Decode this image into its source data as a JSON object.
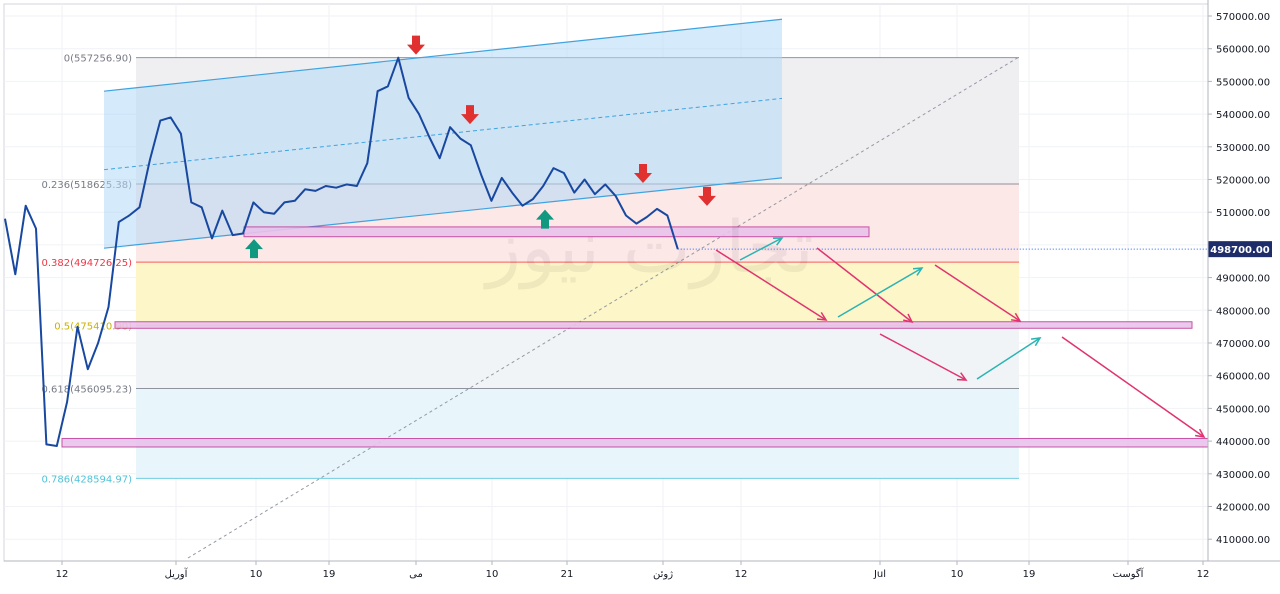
{
  "chart_data": {
    "type": "line",
    "y_axis": {
      "ticks": [
        "570000.00",
        "560000.00",
        "550000.00",
        "540000.00",
        "530000.00",
        "520000.00",
        "510000.00",
        "500000.00",
        "490000.00",
        "480000.00",
        "470000.00",
        "460000.00",
        "450000.00",
        "440000.00",
        "430000.00",
        "420000.00",
        "410000.00"
      ],
      "tick_values": [
        570000,
        560000,
        550000,
        540000,
        530000,
        520000,
        510000,
        500000,
        490000,
        480000,
        470000,
        460000,
        450000,
        440000,
        430000,
        420000,
        410000
      ],
      "range": [
        403000,
        574000
      ]
    },
    "x_axis": {
      "ticks": [
        "12",
        "آوریل",
        "10",
        "19",
        "می",
        "10",
        "21",
        "ژوئن",
        "12",
        "Jul",
        "10",
        "19",
        "آگوست",
        "12"
      ]
    },
    "price_label": "498700.00",
    "price_value": 498700,
    "series": [
      {
        "color": "#1848a0",
        "points": [
          [
            0,
            508000
          ],
          [
            1,
            491000
          ],
          [
            2,
            512000
          ],
          [
            3,
            505000
          ],
          [
            4,
            439000
          ],
          [
            5,
            438500
          ],
          [
            6,
            452000
          ],
          [
            7,
            475000
          ],
          [
            8,
            462000
          ],
          [
            9,
            470000
          ],
          [
            10,
            481000
          ],
          [
            11,
            507000
          ],
          [
            12,
            509000
          ],
          [
            13,
            511500
          ],
          [
            14,
            526000
          ],
          [
            15,
            538000
          ],
          [
            16,
            539000
          ],
          [
            17,
            534000
          ],
          [
            18,
            513000
          ],
          [
            19,
            511500
          ],
          [
            20,
            502000
          ],
          [
            21,
            510500
          ],
          [
            22,
            503000
          ],
          [
            23,
            503500
          ],
          [
            24,
            513000
          ],
          [
            25,
            510000
          ],
          [
            26,
            509500
          ],
          [
            27,
            513000
          ],
          [
            28,
            513500
          ],
          [
            29,
            517000
          ],
          [
            30,
            516500
          ],
          [
            31,
            518000
          ],
          [
            32,
            517500
          ],
          [
            33,
            518500
          ],
          [
            34,
            518000
          ],
          [
            35,
            525000
          ],
          [
            36,
            547000
          ],
          [
            37,
            548500
          ],
          [
            38,
            557256
          ],
          [
            39,
            545000
          ],
          [
            40,
            540000
          ],
          [
            41,
            533000
          ],
          [
            42,
            526500
          ],
          [
            43,
            536000
          ],
          [
            44,
            532500
          ],
          [
            45,
            530500
          ],
          [
            46,
            521500
          ],
          [
            47,
            513500
          ],
          [
            48,
            520500
          ],
          [
            49,
            516000
          ],
          [
            50,
            512000
          ],
          [
            51,
            514000
          ],
          [
            52,
            518000
          ],
          [
            53,
            523500
          ],
          [
            54,
            522000
          ],
          [
            55,
            516000
          ],
          [
            56,
            520000
          ],
          [
            57,
            515500
          ],
          [
            58,
            518500
          ],
          [
            59,
            515000
          ],
          [
            60,
            509000
          ],
          [
            61,
            506500
          ],
          [
            62,
            508500
          ],
          [
            63,
            511000
          ],
          [
            64,
            509000
          ],
          [
            65,
            498700
          ]
        ]
      }
    ],
    "fib_levels": [
      {
        "ratio": "0",
        "label": "0(557256.90)",
        "value": 557256.9,
        "color": "#787b86"
      },
      {
        "ratio": "0.236",
        "label": "0.236(518625.38)",
        "value": 518625.38,
        "color": "#787b86"
      },
      {
        "ratio": "0.382",
        "label": "0.382(494726.25)",
        "value": 494726.25,
        "color": "#f23645"
      },
      {
        "ratio": "0.5",
        "label": "0.5(475410.90)",
        "value": 475410.9,
        "color": "#c9b200"
      },
      {
        "ratio": "0.618",
        "label": "0.618(456095.23)",
        "value": 456095.23,
        "color": "#787b86"
      },
      {
        "ratio": "0.786",
        "label": "0.786(428594.97)",
        "value": 428594.97,
        "color": "#4fc3d8"
      }
    ],
    "zones": [
      {
        "top": 518625.38,
        "bottom": 494726.25,
        "color": "#fde8e8"
      },
      {
        "top": 494726.25,
        "bottom": 475410.9,
        "color": "#fdf6c8"
      },
      {
        "top": 475410.9,
        "bottom": 456095.23,
        "color": "#f1f4f6"
      },
      {
        "top": 456095.23,
        "bottom": 428594.97,
        "color": "#e8f6fb"
      },
      {
        "top": 557256.9,
        "bottom": 518625.38,
        "color": "#efeff2"
      }
    ],
    "support_zones": [
      {
        "value_top": 505500,
        "value_bottom": 502500
      },
      {
        "value_top": 476500,
        "value_bottom": 474500
      },
      {
        "value_top": 440800,
        "value_bottom": 438200
      }
    ],
    "arrows_down": [
      {
        "value": 557256
      },
      {
        "value": 536000
      },
      {
        "value": 518000
      },
      {
        "value": 511000
      }
    ],
    "arrows_up": [
      {
        "value": 503000
      },
      {
        "value": 512000
      }
    ],
    "watermark": "ﺗﺠﺎﺭﺕ ﻧﻴﻮﺯ"
  },
  "colors": {
    "line": "#1848a0",
    "channel_fill": "#b3d9f5",
    "channel_stroke": "#3fa3e0",
    "zone_pink": "#e9c3ec",
    "zone_stroke": "#c2409b",
    "arrow_red": "#e03030",
    "arrow_green": "#109980",
    "proj_pink": "#e0336f",
    "proj_teal": "#2bb3b3",
    "price_tag": "#1e2d6a"
  }
}
